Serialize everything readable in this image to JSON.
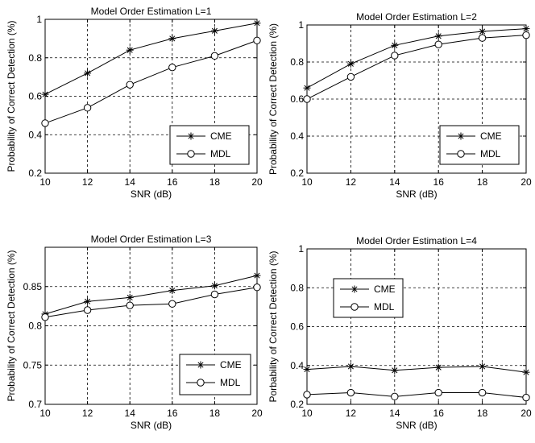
{
  "chart_data": [
    {
      "type": "line",
      "title": "Model Order Estimation L=1",
      "xlabel": "SNR (dB)",
      "ylabel": "Probability of Correct Detection (%)",
      "x": [
        10,
        12,
        14,
        16,
        18,
        20
      ],
      "xlim": [
        10,
        20
      ],
      "ylim": [
        0.2,
        1
      ],
      "xticks": [
        "10",
        "12",
        "14",
        "16",
        "18",
        "20"
      ],
      "yticks": [
        "0.2",
        "0.4",
        "0.6",
        "0.8",
        "1"
      ],
      "grid": true,
      "legend_position": "bottom-right",
      "series": [
        {
          "name": "CME",
          "marker": "star",
          "values": [
            0.61,
            0.72,
            0.84,
            0.9,
            0.94,
            0.98
          ]
        },
        {
          "name": "MDL",
          "marker": "circle",
          "values": [
            0.46,
            0.54,
            0.66,
            0.75,
            0.81,
            0.89
          ]
        }
      ]
    },
    {
      "type": "line",
      "title": "Model Order Estimation L=2",
      "xlabel": "SNR (dB)",
      "ylabel": "Probability of Correct Detection (%)",
      "x": [
        10,
        12,
        14,
        16,
        18,
        20
      ],
      "xlim": [
        10,
        20
      ],
      "ylim": [
        0.2,
        1
      ],
      "xticks": [
        "10",
        "12",
        "14",
        "16",
        "18",
        "20"
      ],
      "yticks": [
        "0.2",
        "0.4",
        "0.6",
        "0.8",
        "1"
      ],
      "grid": true,
      "legend_position": "bottom-right",
      "series": [
        {
          "name": "CME",
          "marker": "star",
          "values": [
            0.66,
            0.79,
            0.89,
            0.94,
            0.965,
            0.98
          ]
        },
        {
          "name": "MDL",
          "marker": "circle",
          "values": [
            0.6,
            0.72,
            0.835,
            0.895,
            0.93,
            0.945
          ]
        }
      ]
    },
    {
      "type": "line",
      "title": "Model Order Estimation L=3",
      "xlabel": "SNR (dB)",
      "ylabel": "Probability of Correct Detection (%)",
      "x": [
        10,
        12,
        14,
        16,
        18,
        20
      ],
      "xlim": [
        10,
        20
      ],
      "ylim": [
        0.7,
        0.9
      ],
      "xticks": [
        "10",
        "12",
        "14",
        "16",
        "18",
        "20"
      ],
      "yticks": [
        "0.7",
        "0.75",
        "0.8",
        "0.85"
      ],
      "grid": true,
      "legend_position": "bottom-right",
      "series": [
        {
          "name": "CME",
          "marker": "star",
          "values": [
            0.815,
            0.831,
            0.836,
            0.845,
            0.851,
            0.864
          ]
        },
        {
          "name": "MDL",
          "marker": "circle",
          "values": [
            0.811,
            0.82,
            0.826,
            0.828,
            0.84,
            0.849
          ]
        }
      ]
    },
    {
      "type": "line",
      "title": "Model Order Estimation L=4",
      "xlabel": "SNR (dB)",
      "ylabel": "Porbability of Correct Detection (%)",
      "x": [
        10,
        12,
        14,
        16,
        18,
        20
      ],
      "xlim": [
        10,
        20
      ],
      "ylim": [
        0.2,
        1
      ],
      "xticks": [
        "10",
        "12",
        "14",
        "16",
        "18",
        "20"
      ],
      "yticks": [
        "0.2",
        "0.4",
        "0.6",
        "0.8",
        "1"
      ],
      "grid": true,
      "legend_position": "top-left",
      "series": [
        {
          "name": "CME",
          "marker": "star",
          "values": [
            0.38,
            0.395,
            0.375,
            0.39,
            0.395,
            0.365
          ]
        },
        {
          "name": "MDL",
          "marker": "circle",
          "values": [
            0.25,
            0.26,
            0.24,
            0.26,
            0.26,
            0.235
          ]
        }
      ]
    }
  ]
}
